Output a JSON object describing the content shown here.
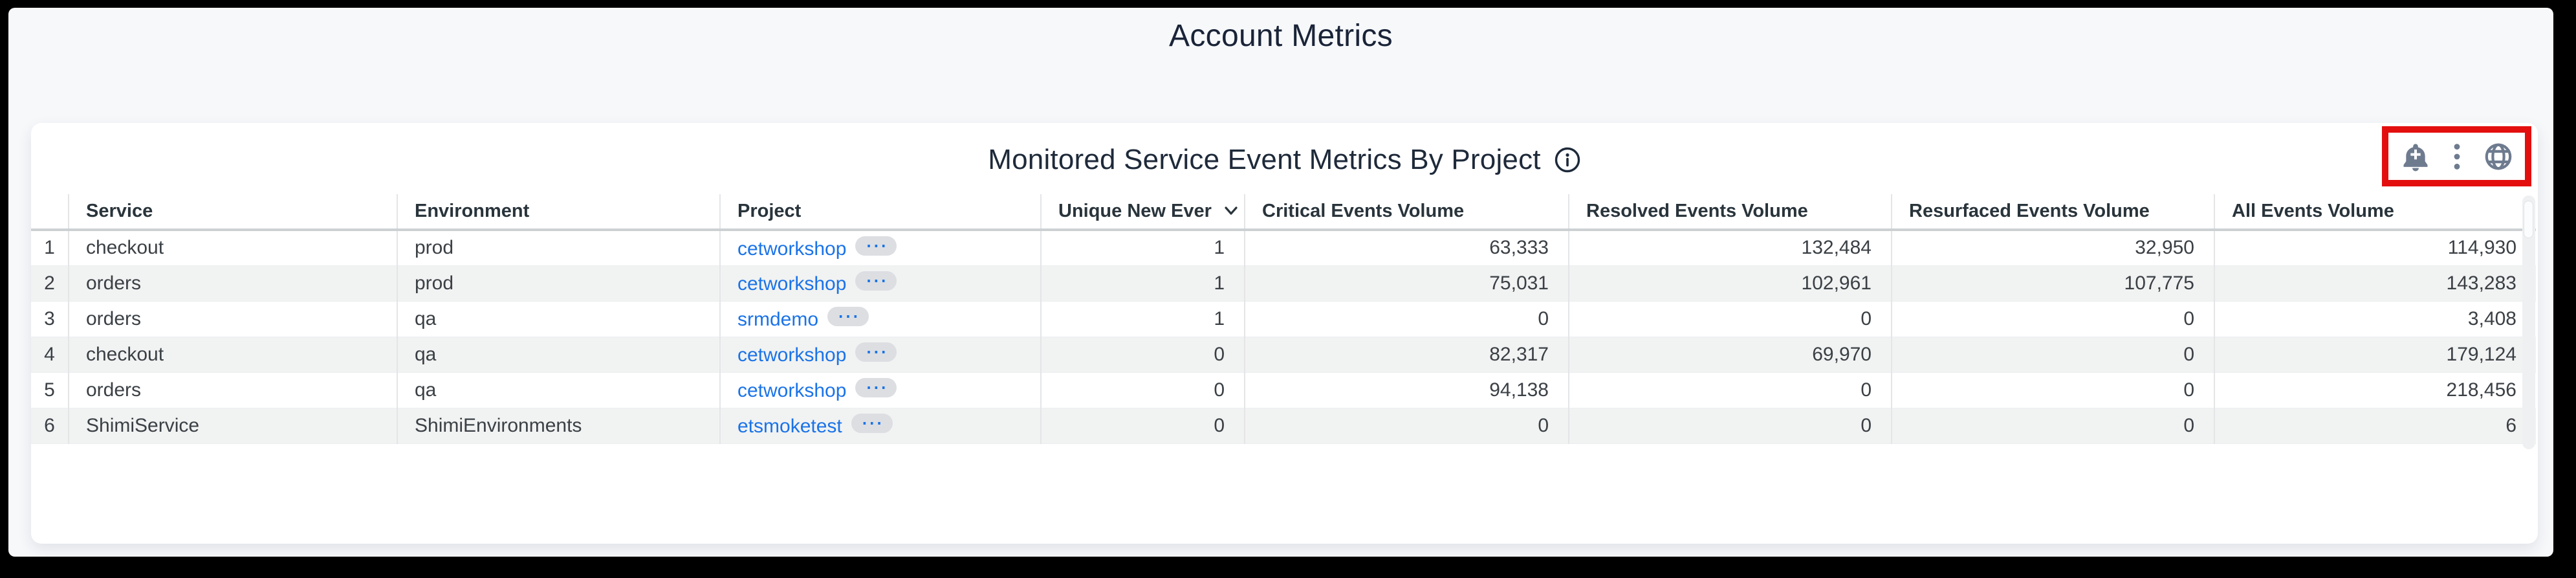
{
  "page": {
    "title": "Account Metrics"
  },
  "panel": {
    "title": "Monitored Service Event Metrics By Project",
    "info_icon": "info-circle",
    "toolbar_icons": [
      {
        "name": "add-alert-bell-icon",
        "glyph": "bell-plus"
      },
      {
        "name": "kebab-menu-icon",
        "glyph": "vertical-dots"
      },
      {
        "name": "globe-icon",
        "glyph": "globe"
      }
    ]
  },
  "table": {
    "columns": [
      {
        "key": "num",
        "label": "",
        "align": "center"
      },
      {
        "key": "service",
        "label": "Service",
        "align": "left"
      },
      {
        "key": "environment",
        "label": "Environment",
        "align": "left"
      },
      {
        "key": "project",
        "label": "Project",
        "align": "left",
        "type": "link"
      },
      {
        "key": "unique_new",
        "label": "Unique New Ever",
        "align": "right",
        "sorted": "desc"
      },
      {
        "key": "critical",
        "label": "Critical Events Volume",
        "align": "right"
      },
      {
        "key": "resolved",
        "label": "Resolved Events Volume",
        "align": "right"
      },
      {
        "key": "resurfaced",
        "label": "Resurfaced Events Volume",
        "align": "right"
      },
      {
        "key": "all",
        "label": "All Events Volume",
        "align": "right"
      }
    ],
    "project_badge": "⋯",
    "rows": [
      {
        "num": "1",
        "service": "checkout",
        "environment": "prod",
        "project": "cetworkshop",
        "unique_new": "1",
        "critical": "63,333",
        "resolved": "132,484",
        "resurfaced": "32,950",
        "all": "114,930"
      },
      {
        "num": "2",
        "service": "orders",
        "environment": "prod",
        "project": "cetworkshop",
        "unique_new": "1",
        "critical": "75,031",
        "resolved": "102,961",
        "resurfaced": "107,775",
        "all": "143,283"
      },
      {
        "num": "3",
        "service": "orders",
        "environment": "qa",
        "project": "srmdemo",
        "unique_new": "1",
        "critical": "0",
        "resolved": "0",
        "resurfaced": "0",
        "all": "3,408"
      },
      {
        "num": "4",
        "service": "checkout",
        "environment": "qa",
        "project": "cetworkshop",
        "unique_new": "0",
        "critical": "82,317",
        "resolved": "69,970",
        "resurfaced": "0",
        "all": "179,124"
      },
      {
        "num": "5",
        "service": "orders",
        "environment": "qa",
        "project": "cetworkshop",
        "unique_new": "0",
        "critical": "94,138",
        "resolved": "0",
        "resurfaced": "0",
        "all": "218,456"
      },
      {
        "num": "6",
        "service": "ShimiService",
        "environment": "ShimiEnvironments",
        "project": "etsmoketest",
        "unique_new": "0",
        "critical": "0",
        "resolved": "0",
        "resurfaced": "0",
        "all": "6"
      }
    ]
  },
  "colors": {
    "link_blue": "#1a73e8",
    "annotation_red": "#e30f0f",
    "icon_gray": "#6e7b8f",
    "title_navy": "#1e2a3a",
    "zebra_gray": "#f1f2f2"
  }
}
